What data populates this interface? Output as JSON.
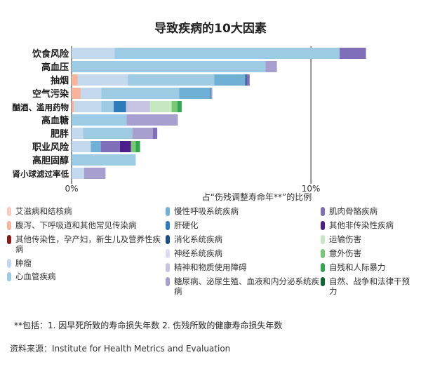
{
  "title": "导致疾病的10大因素",
  "chart_data": {
    "type": "bar",
    "orientation": "horizontal",
    "stacked": true,
    "title": "导致疾病的10大因素",
    "xlabel": "占“伤残调整寿命年**”的比例",
    "xlim": [
      0,
      14.6
    ],
    "xticks": [
      {
        "value": 0,
        "label": "0%"
      },
      {
        "value": 10,
        "label": "10%"
      }
    ],
    "categories": [
      "饮食风险",
      "高血压",
      "抽烟",
      "空气污染",
      "酗酒、滥用药物",
      "高血糖",
      "肥胖",
      "职业风险",
      "高胆固醇",
      "肾小球滤过率低"
    ],
    "series": [
      {
        "name": "艾滋病和结核病",
        "color": "#f6cdbd",
        "values": [
          0,
          0,
          0.02,
          0.02,
          0,
          0,
          0,
          0,
          0,
          0
        ]
      },
      {
        "name": "腹泻、下呼吸道和其他常见传染病",
        "color": "#f7b49b",
        "values": [
          0,
          0,
          0.24,
          0.36,
          0.1,
          0,
          0,
          0,
          0,
          0
        ]
      },
      {
        "name": "其他传染性，孕产妇，新生儿及营养性疾病",
        "color": "#8b1a1a",
        "values": [
          0,
          0,
          0,
          0,
          0,
          0,
          0,
          0,
          0,
          0
        ]
      },
      {
        "name": "肿瘤",
        "color": "#c5d9ee",
        "values": [
          1.8,
          0,
          2.1,
          0.86,
          1.14,
          0,
          0.48,
          0.8,
          0,
          0.52
        ]
      },
      {
        "name": "心血管疾病",
        "color": "#9ccbe3",
        "values": [
          9.4,
          8.1,
          3.6,
          3.26,
          0.52,
          2.3,
          2.06,
          0,
          2.68,
          0
        ]
      },
      {
        "name": "慢性呼吸系统疾病",
        "color": "#6fb0d6",
        "values": [
          0,
          0,
          1.3,
          1.32,
          0,
          0,
          0,
          0.42,
          0,
          0
        ]
      },
      {
        "name": "肝硬化",
        "color": "#2e7bb9",
        "values": [
          0,
          0,
          0,
          0,
          0.52,
          0,
          0,
          0,
          0,
          0
        ]
      },
      {
        "name": "消化系统疾病",
        "color": "#1a4f87",
        "values": [
          0,
          0,
          0.06,
          0.02,
          0,
          0,
          0,
          0,
          0,
          0
        ]
      },
      {
        "name": "神经系统疾病",
        "color": "#dcdcf0",
        "values": [
          0,
          0,
          0,
          0,
          0,
          0,
          0,
          0,
          0,
          0
        ]
      },
      {
        "name": "精神和物质使用障碍",
        "color": "#c6c3e3",
        "values": [
          0,
          0,
          0,
          0,
          1.0,
          0,
          0,
          0,
          0,
          0
        ]
      },
      {
        "name": "糖尿病、泌尿生殖、血液和内分泌系统疾病",
        "color": "#a79fce",
        "values": [
          0,
          0.48,
          0,
          0.04,
          0,
          2.14,
          0.86,
          0,
          0,
          0.9
        ]
      },
      {
        "name": "肌肉骨骼疾病",
        "color": "#7e6fb8",
        "values": [
          1.1,
          0,
          0.12,
          0,
          0,
          0,
          0.18,
          0.8,
          0,
          0
        ]
      },
      {
        "name": "其他非传染性疾病",
        "color": "#4b1e8c",
        "values": [
          0,
          0,
          0,
          0,
          0,
          0,
          0,
          0.46,
          0,
          0
        ]
      },
      {
        "name": "运输伤害",
        "color": "#c6e8c0",
        "values": [
          0,
          0,
          0,
          0,
          0.9,
          0,
          0,
          0,
          0,
          0
        ]
      },
      {
        "name": "意外伤害",
        "color": "#79c873",
        "values": [
          0,
          0,
          0,
          0,
          0.24,
          0,
          0,
          0.2,
          0,
          0
        ]
      },
      {
        "name": "自残和人际暴力",
        "color": "#2fa84f",
        "values": [
          0,
          0,
          0,
          0,
          0.18,
          0,
          0,
          0.18,
          0,
          0
        ]
      },
      {
        "name": "自然、战争和法律干预力",
        "color": "#0d6b2f",
        "values": [
          0,
          0,
          0,
          0,
          0,
          0,
          0,
          0,
          0,
          0
        ]
      }
    ]
  },
  "footnote": "**包括：1. 因早死所致的寿命损失年数  2. 伤残所致的健康寿命损失年数",
  "source": "资料来源：Institute for Health Metrics and Evaluation"
}
